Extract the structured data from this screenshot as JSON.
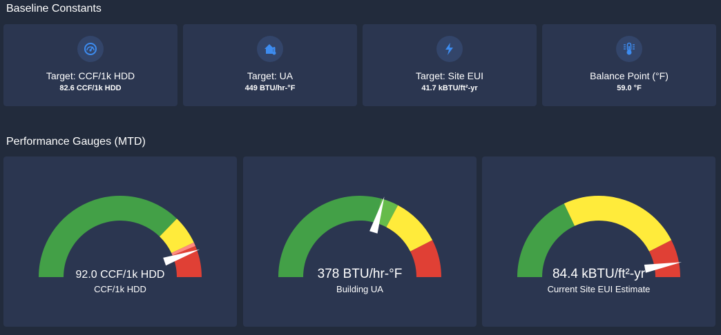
{
  "sections": {
    "baseline_title": "Baseline Constants",
    "gauges_title": "Performance Gauges (MTD)"
  },
  "constants": [
    {
      "label": "Target: CCF/1k HDD",
      "value": "82.6 CCF/1k HDD",
      "icon": "speedometer-icon"
    },
    {
      "label": "Target: UA",
      "value": "449 BTU/hr-°F",
      "icon": "house-thermometer-icon"
    },
    {
      "label": "Target: Site EUI",
      "value": "41.7 kBTU/ft²-yr",
      "icon": "lightning-bolt-icon"
    },
    {
      "label": "Balance Point (°F)",
      "value": "59.0 °F",
      "icon": "thermometer-icon"
    }
  ],
  "gauges": [
    {
      "value_text": "92.0 CCF/1k HDD",
      "label": "CCF/1k HDD",
      "needle_fraction": 0.893,
      "bands": [
        {
          "from": 0,
          "to": 0.745,
          "color": "#43a047"
        },
        {
          "from": 0.745,
          "to": 0.86,
          "color": "#ffeb3b"
        },
        {
          "from": 0.86,
          "to": 0.875,
          "color": "#ff8a80"
        },
        {
          "from": 0.875,
          "to": 1,
          "color": "#e04035"
        }
      ]
    },
    {
      "value_text": "378 BTU/hr-°F",
      "label": "Building UA",
      "needle_fraction": 0.594,
      "bands": [
        {
          "from": 0,
          "to": 0.585,
          "color": "#43a047"
        },
        {
          "from": 0.585,
          "to": 0.655,
          "color": "#66bb4a"
        },
        {
          "from": 0.655,
          "to": 0.85,
          "color": "#ffeb3b"
        },
        {
          "from": 0.85,
          "to": 1,
          "color": "#e04035"
        }
      ]
    },
    {
      "value_text": "84.4 kBTU/ft²-yr",
      "label": "Current Site EUI Estimate",
      "needle_fraction": 0.943,
      "bands": [
        {
          "from": 0,
          "to": 0.36,
          "color": "#43a047"
        },
        {
          "from": 0.36,
          "to": 0.85,
          "color": "#ffeb3b"
        },
        {
          "from": 0.85,
          "to": 1,
          "color": "#e04035"
        }
      ]
    }
  ],
  "colors": {
    "background": "#222b3c",
    "card": "#2b3650",
    "icon_circle": "#33456a",
    "icon_blue": "#3d8cf0",
    "needle": "#ffffff"
  }
}
